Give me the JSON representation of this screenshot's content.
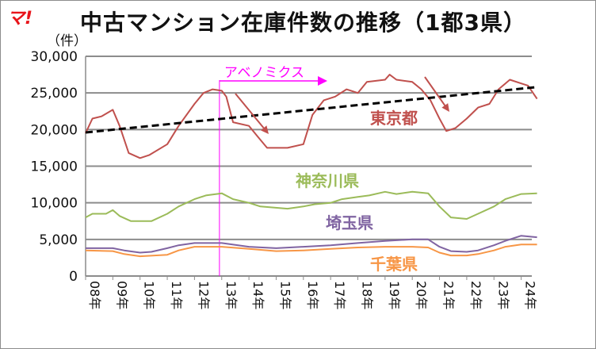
{
  "logo": "マ!",
  "chart_data": {
    "type": "line",
    "title": "中古マンション在庫件数の推移（1都3県）",
    "ylabel": "（件）",
    "ylim": [
      0,
      30000
    ],
    "yticks": [
      "0",
      "5,000",
      "10,000",
      "15,000",
      "20,000",
      "25,000",
      "30,000"
    ],
    "ytick_values": [
      0,
      5000,
      10000,
      15000,
      20000,
      25000,
      30000
    ],
    "xlim": [
      "2008-01",
      "2024-08"
    ],
    "xticks": [
      "08年",
      "09年",
      "10年",
      "11年",
      "12年",
      "13年",
      "14年",
      "15年",
      "16年",
      "17年",
      "18年",
      "19年",
      "20年",
      "21年",
      "22年",
      "23年",
      "24年"
    ],
    "grid": true,
    "legend": "inline labels",
    "series": [
      {
        "name": "東京都",
        "color": "#c0504d",
        "x": [
          "2008-01",
          "2008-04",
          "2008-08",
          "2009-01",
          "2009-04",
          "2009-08",
          "2010-01",
          "2010-05",
          "2011-01",
          "2011-06",
          "2012-01",
          "2012-05",
          "2012-09",
          "2013-01",
          "2013-03",
          "2013-06",
          "2014-01",
          "2014-05",
          "2014-09",
          "2015-06",
          "2016-01",
          "2016-05",
          "2016-10",
          "2017-03",
          "2017-08",
          "2018-01",
          "2018-05",
          "2019-01",
          "2019-03",
          "2019-06",
          "2020-01",
          "2020-05",
          "2020-09",
          "2021-01",
          "2021-04",
          "2021-08",
          "2022-01",
          "2022-06",
          "2022-11",
          "2023-03",
          "2023-08",
          "2024-01",
          "2024-04",
          "2024-08"
        ],
        "y": [
          19500,
          21500,
          21800,
          22700,
          20500,
          16800,
          16100,
          16500,
          18000,
          20500,
          23500,
          25000,
          25500,
          25300,
          24500,
          21000,
          20500,
          19000,
          17500,
          17500,
          18000,
          22000,
          24000,
          24500,
          25500,
          25000,
          26500,
          26800,
          27500,
          26800,
          26500,
          25500,
          24000,
          21500,
          19800,
          20200,
          21500,
          23000,
          23500,
          25500,
          26800,
          26300,
          26000,
          24200
        ]
      },
      {
        "name": "神奈川県",
        "color": "#9bbb59",
        "x": [
          "2008-01",
          "2008-04",
          "2008-10",
          "2009-01",
          "2009-04",
          "2009-09",
          "2010-06",
          "2011-01",
          "2011-06",
          "2012-01",
          "2012-06",
          "2013-01",
          "2013-06",
          "2014-01",
          "2014-06",
          "2015-06",
          "2016-01",
          "2016-06",
          "2017-01",
          "2017-06",
          "2018-01",
          "2018-06",
          "2019-01",
          "2019-06",
          "2020-01",
          "2020-08",
          "2021-01",
          "2021-06",
          "2022-01",
          "2022-06",
          "2023-01",
          "2023-06",
          "2024-01",
          "2024-08"
        ],
        "y": [
          8000,
          8500,
          8500,
          9000,
          8200,
          7500,
          7500,
          8500,
          9500,
          10500,
          11000,
          11300,
          10500,
          10000,
          9500,
          9200,
          9500,
          9800,
          10000,
          10500,
          10800,
          11000,
          11500,
          11200,
          11500,
          11300,
          9500,
          8000,
          7800,
          8500,
          9500,
          10500,
          11200,
          11300
        ]
      },
      {
        "name": "埼玉県",
        "color": "#8064a2",
        "x": [
          "2008-01",
          "2009-01",
          "2009-06",
          "2010-01",
          "2010-06",
          "2011-01",
          "2011-06",
          "2012-01",
          "2013-01",
          "2014-01",
          "2015-01",
          "2016-01",
          "2017-01",
          "2018-01",
          "2019-01",
          "2020-01",
          "2020-08",
          "2021-01",
          "2021-06",
          "2022-01",
          "2022-06",
          "2023-01",
          "2023-06",
          "2024-01",
          "2024-08"
        ],
        "y": [
          3800,
          3800,
          3500,
          3200,
          3300,
          3800,
          4200,
          4500,
          4500,
          4000,
          3800,
          4000,
          4200,
          4500,
          4800,
          5000,
          5000,
          4000,
          3400,
          3300,
          3500,
          4200,
          4800,
          5500,
          5300
        ]
      },
      {
        "name": "千葉県",
        "color": "#f79646",
        "x": [
          "2008-01",
          "2009-01",
          "2009-06",
          "2010-01",
          "2011-01",
          "2011-06",
          "2012-01",
          "2013-01",
          "2014-01",
          "2015-01",
          "2016-01",
          "2017-01",
          "2018-01",
          "2019-01",
          "2020-01",
          "2020-08",
          "2021-01",
          "2021-06",
          "2022-01",
          "2022-06",
          "2023-01",
          "2023-06",
          "2024-01",
          "2024-08"
        ],
        "y": [
          3500,
          3400,
          3000,
          2700,
          2900,
          3500,
          4000,
          4000,
          3700,
          3400,
          3500,
          3700,
          3900,
          4000,
          4000,
          3900,
          3200,
          2800,
          2800,
          3000,
          3500,
          4000,
          4300,
          4300
        ]
      },
      {
        "color": "#000000",
        "dash": true,
        "x": [
          "2008-01",
          "2024-08"
        ],
        "y": [
          19600,
          25800
        ]
      }
    ],
    "annotations": [
      {
        "text": "アベノミクス",
        "color": "#ff00ff",
        "start": "2012-12"
      }
    ]
  }
}
